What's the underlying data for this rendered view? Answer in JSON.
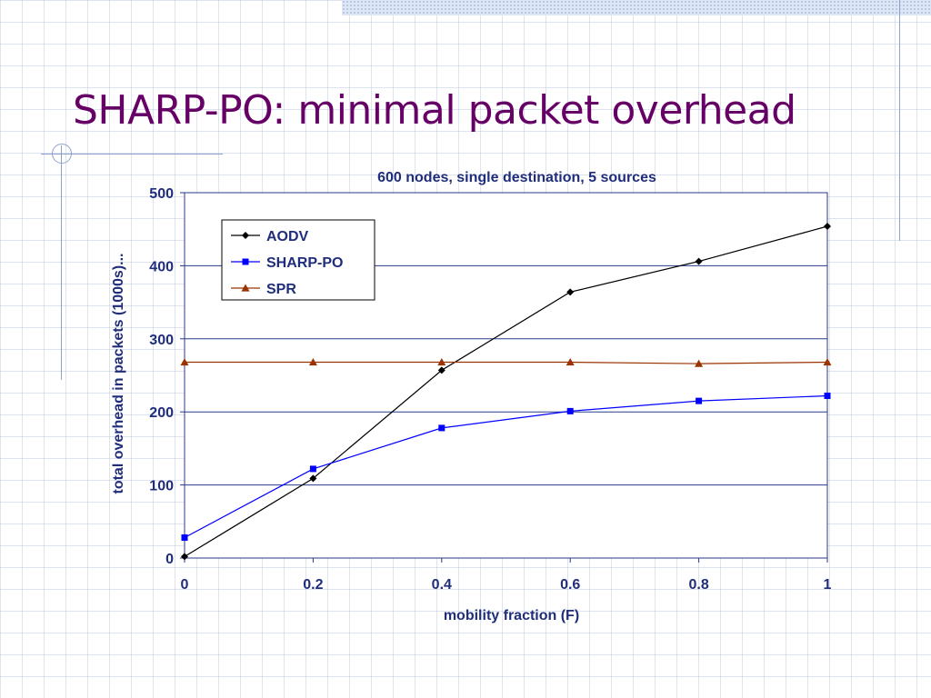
{
  "slide": {
    "title": "SHARP-PO: minimal packet overhead"
  },
  "colors": {
    "title": "#660066",
    "chart_text": "#1f2d7a",
    "aodv": "#000000",
    "sharp_po": "#0000ff",
    "spr": "#993300",
    "gridline": "#2a3a8c"
  },
  "chart_data": {
    "type": "line",
    "title": "600 nodes, single destination, 5 sources",
    "xlabel": "mobility fraction (F)",
    "ylabel": "total overhead in packets (1000s)...",
    "x": [
      0,
      0.2,
      0.4,
      0.6,
      0.8,
      1
    ],
    "x_tick_labels": [
      "0",
      "0.2",
      "0.4",
      "0.6",
      "0.8",
      "1"
    ],
    "y_tick_labels": [
      "0",
      "100",
      "200",
      "300",
      "400",
      "500"
    ],
    "xlim": [
      0,
      1
    ],
    "ylim": [
      0,
      500
    ],
    "grid": "horizontal",
    "legend_position": "top-left",
    "series": [
      {
        "name": "AODV",
        "marker": "diamond",
        "values": [
          2,
          109,
          257,
          364,
          406,
          454
        ]
      },
      {
        "name": "SHARP-PO",
        "marker": "square",
        "values": [
          28,
          122,
          178,
          201,
          215,
          222
        ]
      },
      {
        "name": "SPR",
        "marker": "triangle",
        "values": [
          268,
          268,
          268,
          268,
          266,
          268
        ]
      }
    ]
  }
}
